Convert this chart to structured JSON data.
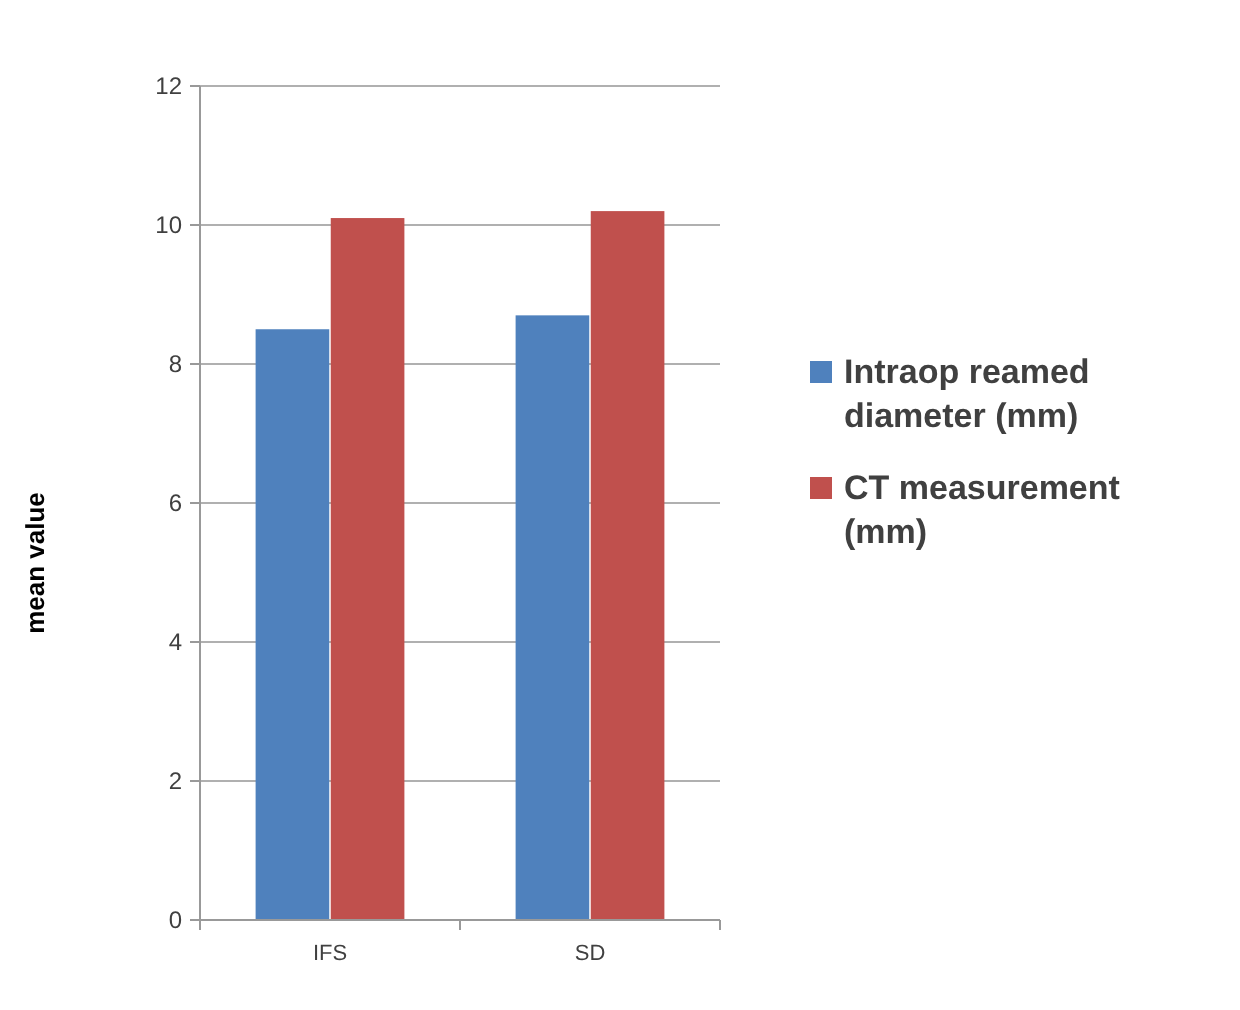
{
  "chart_data": {
    "type": "bar",
    "ylabel": "mean value",
    "categories": [
      "IFS",
      "SD"
    ],
    "series": [
      {
        "name": "Intraop reamed diameter (mm)",
        "color": "#4f81bd",
        "values": [
          8.5,
          8.7
        ]
      },
      {
        "name": "CT measurement (mm)",
        "color": "#c0504d",
        "values": [
          10.1,
          10.2
        ]
      }
    ],
    "ylim": [
      0,
      12
    ],
    "yticks": [
      0,
      2,
      4,
      6,
      8,
      10,
      12
    ],
    "grid": "y",
    "legend": "right"
  }
}
